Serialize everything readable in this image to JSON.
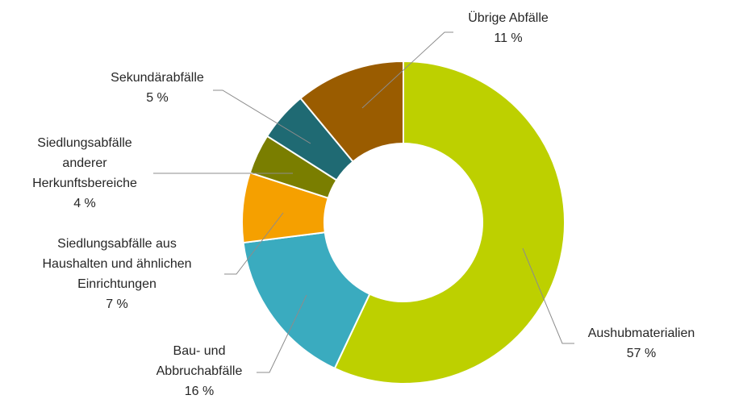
{
  "chart_data": {
    "type": "pie",
    "variant": "donut",
    "title": "",
    "unit": "%",
    "slices": [
      {
        "name": "Aushubmaterialien",
        "label_lines": [
          "Aushubmaterialien"
        ],
        "value": 57,
        "value_label": "57 %",
        "color": "#bdd000"
      },
      {
        "name": "Bau- und Abbruchabfälle",
        "label_lines": [
          "Bau- und",
          "Abbruchabfälle"
        ],
        "value": 16,
        "value_label": "16 %",
        "color": "#3aabbf"
      },
      {
        "name": "Siedlungsabfälle aus Haushalten und ähnlichen Einrichtungen",
        "label_lines": [
          "Siedlungsabfälle aus",
          "Haushalten und ähnlichen",
          "Einrichtungen"
        ],
        "value": 7,
        "value_label": "7 %",
        "color": "#f5a000"
      },
      {
        "name": "Siedlungsabfälle anderer Herkunftsbereiche",
        "label_lines": [
          "Siedlungsabfälle",
          "anderer",
          "Herkunftsbereiche"
        ],
        "value": 4,
        "value_label": "4 %",
        "color": "#7a7e00"
      },
      {
        "name": "Sekundärabfälle",
        "label_lines": [
          "Sekundärabfälle"
        ],
        "value": 5,
        "value_label": "5 %",
        "color": "#1f6a73"
      },
      {
        "name": "Übrige Abfälle",
        "label_lines": [
          "Übrige Abfälle"
        ],
        "value": 11,
        "value_label": "11 %",
        "color": "#9a5c00"
      }
    ]
  }
}
